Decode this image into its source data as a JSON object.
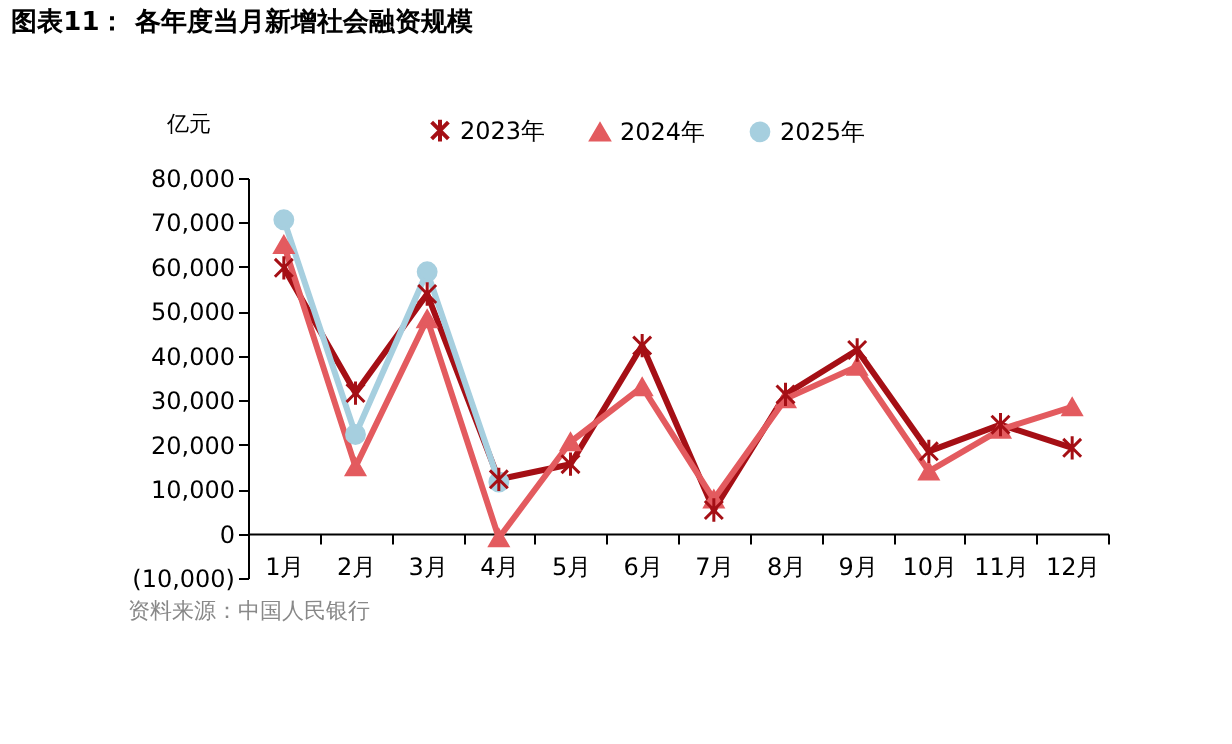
{
  "chart_data": {
    "type": "line",
    "title": "图表11：  各年度当月新增社会融资规模",
    "ylabel": "亿元",
    "categories": [
      "1月",
      "2月",
      "3月",
      "4月",
      "5月",
      "6月",
      "7月",
      "8月",
      "9月",
      "10月",
      "11月",
      "12月"
    ],
    "series": [
      {
        "name": "2023年",
        "color": "#a50f15",
        "marker": "cross",
        "values": [
          59800,
          31600,
          53900,
          12200,
          15600,
          42300,
          5300,
          31300,
          41300,
          18500,
          24500,
          19300
        ]
      },
      {
        "name": "2024年",
        "color": "#e35b5f",
        "marker": "triangle",
        "values": [
          65000,
          15000,
          48300,
          -1000,
          20600,
          33000,
          7700,
          30300,
          37600,
          14000,
          23400,
          28500
        ]
      },
      {
        "name": "2025年",
        "color": "#a6cfdf",
        "marker": "circle",
        "values": [
          70600,
          22300,
          58900,
          11600,
          null,
          null,
          null,
          null,
          null,
          null,
          null,
          null
        ]
      }
    ],
    "ylim": [
      -10000,
      80000
    ],
    "yticks": [
      {
        "value": -10000,
        "label": "(10,000)"
      },
      {
        "value": 0,
        "label": "0"
      },
      {
        "value": 10000,
        "label": "10,000"
      },
      {
        "value": 20000,
        "label": "20,000"
      },
      {
        "value": 30000,
        "label": "30,000"
      },
      {
        "value": 40000,
        "label": "40,000"
      },
      {
        "value": 50000,
        "label": "50,000"
      },
      {
        "value": 60000,
        "label": "60,000"
      },
      {
        "value": 70000,
        "label": "70,000"
      },
      {
        "value": 80000,
        "label": "80,000"
      }
    ],
    "legend": "top",
    "grid": false,
    "line_style": "solid",
    "annotations": [
      "资料来源：中国人民银行"
    ]
  }
}
